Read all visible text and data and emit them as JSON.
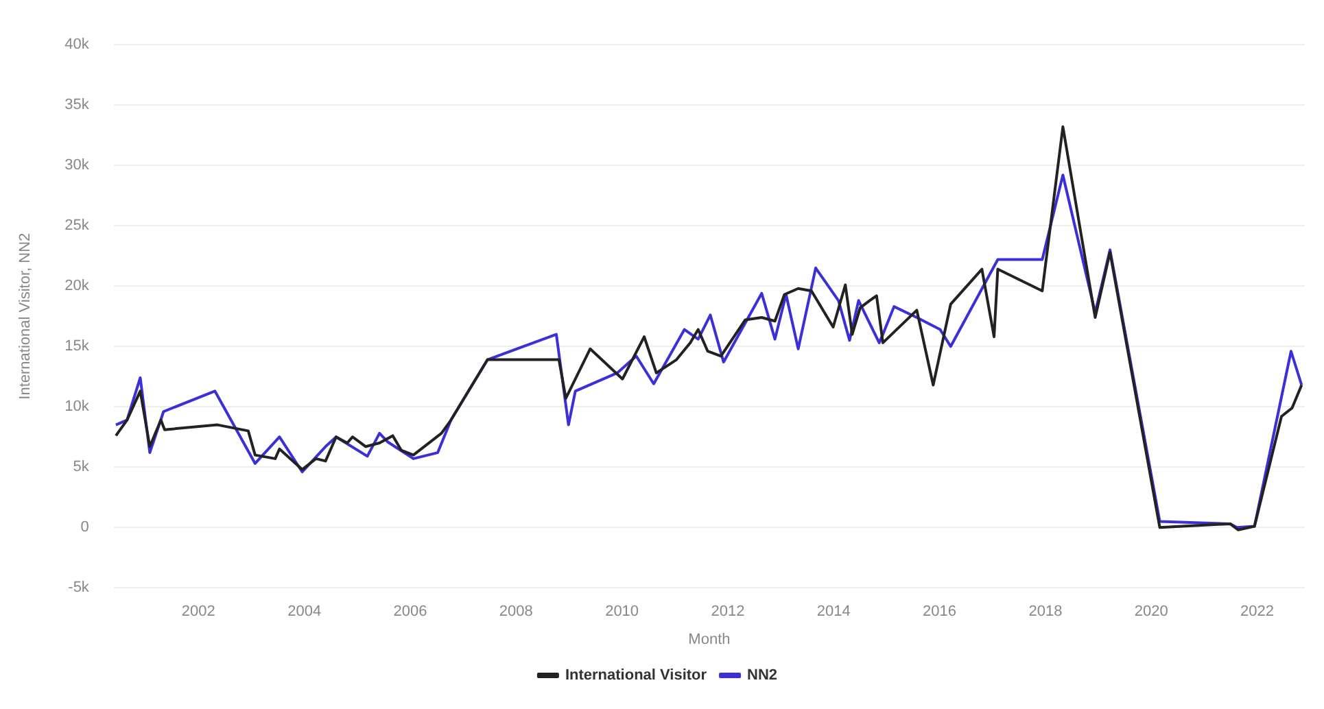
{
  "chart_data": {
    "type": "line",
    "xlabel": "Month",
    "ylabel": "International Visitor, NN2",
    "xlim": [
      2000.4,
      2022.9
    ],
    "xticks": [
      2002,
      2004,
      2006,
      2008,
      2010,
      2012,
      2014,
      2016,
      2018,
      2020,
      2022
    ],
    "ylim": [
      -5000,
      40000
    ],
    "yticks": [
      {
        "value": -5000,
        "label": "-5k"
      },
      0,
      {
        "value": 5000,
        "label": "5k"
      },
      {
        "value": 10000,
        "label": "10k"
      },
      {
        "value": 15000,
        "label": "15k"
      },
      {
        "value": 20000,
        "label": "20k"
      },
      {
        "value": 25000,
        "label": "25k"
      },
      {
        "value": 30000,
        "label": "30k"
      },
      {
        "value": 35000,
        "label": "35k"
      },
      {
        "value": 40000,
        "label": "40k"
      }
    ],
    "grid": "y",
    "legend": "bottom",
    "marker": "none",
    "line_style": "solid",
    "series": [
      {
        "name": "International Visitor",
        "color": "#222222",
        "x": [
          2000.44,
          2000.65,
          2000.9,
          2001.08,
          2001.29,
          2001.36,
          2002.36,
          2002.94,
          2003.07,
          2003.45,
          2003.53,
          2003.96,
          2004.22,
          2004.4,
          2004.6,
          2004.81,
          2004.91,
          2005.16,
          2005.42,
          2005.67,
          2005.83,
          2006.06,
          2006.59,
          2006.77,
          2007.46,
          2008.81,
          2008.94,
          2009.4,
          2010.01,
          2010.42,
          2010.65,
          2011.03,
          2011.29,
          2011.44,
          2011.62,
          2011.87,
          2012.33,
          2012.64,
          2012.89,
          2013.07,
          2013.33,
          2013.58,
          2013.99,
          2014.22,
          2014.35,
          2014.5,
          2014.68,
          2014.81,
          2014.93,
          2015.57,
          2015.88,
          2016.21,
          2016.8,
          2017.03,
          2017.1,
          2017.94,
          2018.33,
          2018.94,
          2019.22,
          2020.16,
          2021.49,
          2021.64,
          2021.95,
          2022.46,
          2022.66,
          2022.84
        ],
        "values": [
          7600,
          8900,
          11300,
          6700,
          8900,
          8100,
          8500,
          8000,
          6000,
          5700,
          6500,
          4800,
          5700,
          5500,
          7500,
          7000,
          7500,
          6700,
          7000,
          7600,
          6400,
          6000,
          7800,
          8900,
          13900,
          13900,
          10700,
          14800,
          12300,
          15800,
          12800,
          13900,
          15300,
          16400,
          14600,
          14200,
          17200,
          17400,
          17100,
          19300,
          19800,
          19600,
          16600,
          20100,
          16000,
          18200,
          18800,
          19200,
          15300,
          18000,
          11800,
          18500,
          21400,
          15800,
          21400,
          19600,
          33200,
          17400,
          22800,
          0,
          300,
          -200,
          100,
          9200,
          9900,
          11800
        ]
      },
      {
        "name": "NN2",
        "color": "#3a2fd8",
        "x": [
          2000.44,
          2000.65,
          2000.9,
          2001.08,
          2001.34,
          2002.31,
          2003.07,
          2003.53,
          2003.96,
          2004.4,
          2004.6,
          2005.19,
          2005.42,
          2005.57,
          2006.06,
          2006.52,
          2006.77,
          2007.46,
          2008.76,
          2008.99,
          2009.12,
          2009.91,
          2010.27,
          2010.6,
          2011.18,
          2011.44,
          2011.67,
          2011.92,
          2012.64,
          2012.89,
          2013.1,
          2013.33,
          2013.66,
          2014.09,
          2014.3,
          2014.47,
          2014.86,
          2014.93,
          2015.14,
          2015.57,
          2016.01,
          2016.21,
          2017.1,
          2017.94,
          2018.33,
          2018.94,
          2019.22,
          2020.16,
          2021.49,
          2021.62,
          2021.95,
          2022.64,
          2022.84
        ],
        "values": [
          8500,
          8900,
          12400,
          6200,
          9600,
          11300,
          5300,
          7500,
          4600,
          6700,
          7500,
          5900,
          7800,
          7100,
          5700,
          6200,
          8900,
          13900,
          16000,
          8500,
          11300,
          12800,
          14200,
          11900,
          16400,
          15600,
          17600,
          13700,
          19400,
          15600,
          19300,
          14800,
          21500,
          18800,
          15500,
          18800,
          15300,
          16000,
          18300,
          17400,
          16400,
          15000,
          22200,
          22200,
          29200,
          17800,
          23000,
          500,
          300,
          0,
          100,
          14600,
          11800
        ]
      }
    ]
  }
}
